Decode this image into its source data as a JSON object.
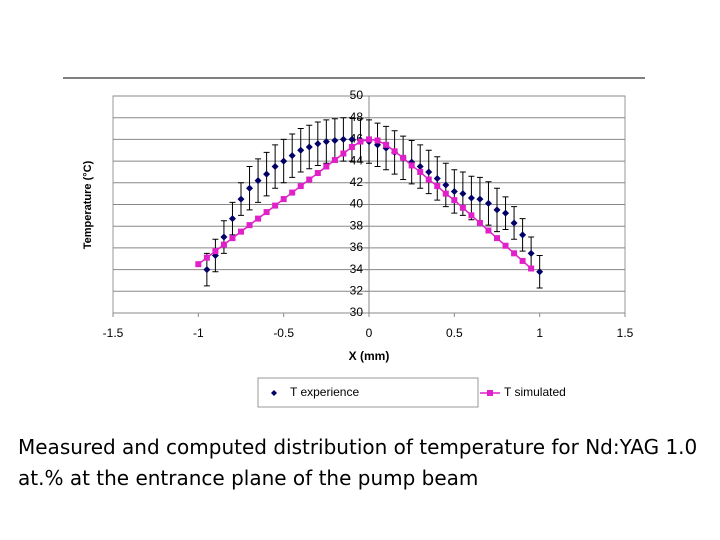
{
  "chart_data": {
    "type": "scatter",
    "x_label": "X (mm)",
    "y_label": "Temperature (°C)",
    "xlim": [
      -1.5,
      1.5
    ],
    "xticks": [
      -1.5,
      -1,
      -0.5,
      0,
      0.5,
      1,
      1.5
    ],
    "ylim": [
      30,
      50
    ],
    "yticks": [
      30,
      32,
      34,
      36,
      38,
      40,
      42,
      44,
      46,
      48,
      50
    ],
    "grid": true,
    "series": [
      {
        "name": "T experience",
        "color": "#000066",
        "marker": "diamond",
        "x": [
          -0.95,
          -0.9,
          -0.85,
          -0.8,
          -0.75,
          -0.7,
          -0.65,
          -0.6,
          -0.55,
          -0.5,
          -0.45,
          -0.4,
          -0.35,
          -0.3,
          -0.25,
          -0.2,
          -0.15,
          -0.1,
          -0.05,
          0,
          0.05,
          0.1,
          0.15,
          0.2,
          0.25,
          0.3,
          0.35,
          0.4,
          0.45,
          0.5,
          0.55,
          0.6,
          0.65,
          0.7,
          0.75,
          0.8,
          0.85,
          0.9,
          0.95,
          1.0
        ],
        "values": [
          34.0,
          35.3,
          37.0,
          38.7,
          40.5,
          41.5,
          42.2,
          42.8,
          43.5,
          44.0,
          44.5,
          45.0,
          45.3,
          45.6,
          45.8,
          45.9,
          46.0,
          46.0,
          45.9,
          45.8,
          45.5,
          45.2,
          44.8,
          44.3,
          43.9,
          43.5,
          43.0,
          42.4,
          41.8,
          41.2,
          41.0,
          40.6,
          40.5,
          40.1,
          39.5,
          39.2,
          38.3,
          37.2,
          35.5,
          33.8
        ],
        "errors": [
          1.5,
          1.5,
          1.5,
          1.5,
          1.5,
          2,
          2,
          2,
          2,
          2,
          2,
          2,
          2,
          2,
          2,
          2,
          2,
          2,
          2,
          2,
          2,
          2,
          2,
          2,
          2,
          2,
          2,
          2,
          2,
          2,
          2,
          2,
          2,
          2,
          2,
          1.5,
          1.5,
          1.5,
          1.5,
          1.5
        ]
      },
      {
        "name": "T simulated",
        "color": "#e020c8",
        "marker": "square",
        "x": [
          -1.0,
          -0.95,
          -0.9,
          -0.85,
          -0.8,
          -0.75,
          -0.7,
          -0.65,
          -0.6,
          -0.55,
          -0.5,
          -0.45,
          -0.4,
          -0.35,
          -0.3,
          -0.25,
          -0.2,
          -0.15,
          -0.1,
          -0.05,
          0,
          0.05,
          0.1,
          0.15,
          0.2,
          0.25,
          0.3,
          0.35,
          0.4,
          0.45,
          0.5,
          0.55,
          0.6,
          0.65,
          0.7,
          0.75,
          0.8,
          0.85,
          0.9,
          0.95
        ],
        "values": [
          34.5,
          35.1,
          35.7,
          36.3,
          36.9,
          37.5,
          38.1,
          38.7,
          39.3,
          39.9,
          40.5,
          41.1,
          41.7,
          42.3,
          42.9,
          43.5,
          44.1,
          44.7,
          45.3,
          45.8,
          46.0,
          45.9,
          45.5,
          44.9,
          44.3,
          43.6,
          43.0,
          42.3,
          41.7,
          41.0,
          40.4,
          39.7,
          39.0,
          38.3,
          37.6,
          36.9,
          36.2,
          35.5,
          34.8,
          34.1
        ]
      }
    ]
  },
  "caption": "Measured and computed distribution of temperature for Nd:YAG 1.0 at.% at the entrance plane of the pump beam"
}
